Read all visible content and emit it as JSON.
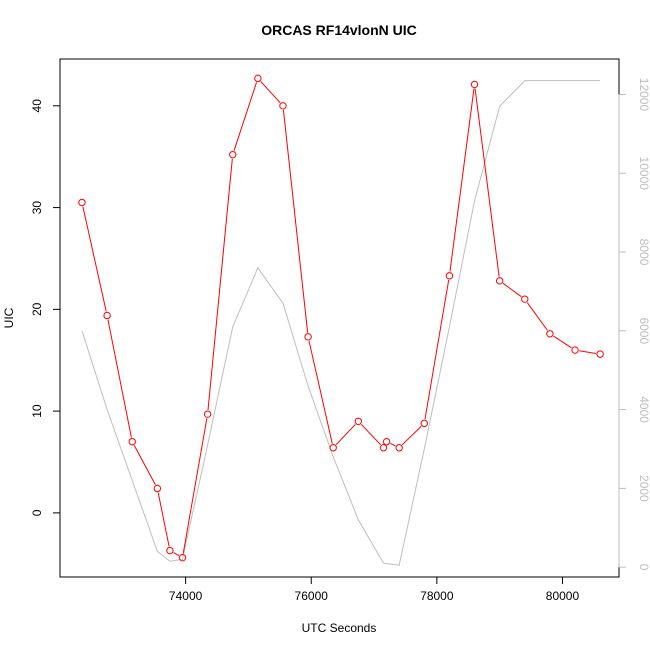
{
  "chart_data": {
    "type": "line",
    "title": "ORCAS RF14vlonN UIC",
    "xlabel": "UTC Seconds",
    "ylabel": "UIC",
    "xlim": [
      72000,
      80900
    ],
    "ylim": [
      -6.3,
      44.6
    ],
    "y2lim": [
      -250,
      12900
    ],
    "x_ticks": [
      74000,
      76000,
      78000,
      80000
    ],
    "x_tick_labels": [
      "74000",
      "76000",
      "78000",
      "80000"
    ],
    "y_ticks": [
      0,
      10,
      20,
      30,
      40
    ],
    "y_tick_labels": [
      "0",
      "10",
      "20",
      "30",
      "40"
    ],
    "y2_ticks": [
      0,
      2000,
      4000,
      6000,
      8000,
      10000,
      12000
    ],
    "y2_tick_labels": [
      "0",
      "2000",
      "4000",
      "6000",
      "8000",
      "10000",
      "12000"
    ],
    "grid": false,
    "series": [
      {
        "axis": "left",
        "color": "#ff0000",
        "marker": "open-circle",
        "points": [
          [
            72350,
            30.5
          ],
          [
            72750,
            19.4
          ],
          [
            73150,
            7.0
          ],
          [
            73550,
            2.4
          ],
          [
            73750,
            -3.7
          ],
          [
            73950,
            -4.4
          ],
          [
            74350,
            9.7
          ],
          [
            74750,
            35.2
          ],
          [
            75150,
            42.7
          ],
          [
            75550,
            40.0
          ],
          [
            75950,
            17.3
          ],
          [
            76350,
            6.4
          ],
          [
            76750,
            9.0
          ],
          [
            77150,
            6.4
          ],
          [
            77200,
            7.0
          ],
          [
            77400,
            6.4
          ],
          [
            77800,
            8.8
          ],
          [
            78200,
            23.3
          ],
          [
            78600,
            42.1
          ],
          [
            79000,
            22.8
          ],
          [
            79400,
            21.0
          ],
          [
            79800,
            17.6
          ],
          [
            80200,
            16.0
          ],
          [
            80600,
            15.6
          ]
        ]
      },
      {
        "axis": "right",
        "color": "#bebebe",
        "marker": "none",
        "points": [
          [
            72350,
            6000
          ],
          [
            72750,
            4000
          ],
          [
            73150,
            2200
          ],
          [
            73550,
            400
          ],
          [
            73750,
            150
          ],
          [
            73950,
            200
          ],
          [
            74350,
            3100
          ],
          [
            74750,
            6100
          ],
          [
            75150,
            7600
          ],
          [
            75550,
            6700
          ],
          [
            75950,
            4600
          ],
          [
            76350,
            2800
          ],
          [
            76750,
            1200
          ],
          [
            77150,
            100
          ],
          [
            77400,
            50
          ],
          [
            77800,
            3000
          ],
          [
            78200,
            6100
          ],
          [
            78600,
            9300
          ],
          [
            79000,
            11700
          ],
          [
            79400,
            12350
          ],
          [
            79800,
            12350
          ],
          [
            80200,
            12350
          ],
          [
            80600,
            12350
          ]
        ]
      }
    ]
  }
}
